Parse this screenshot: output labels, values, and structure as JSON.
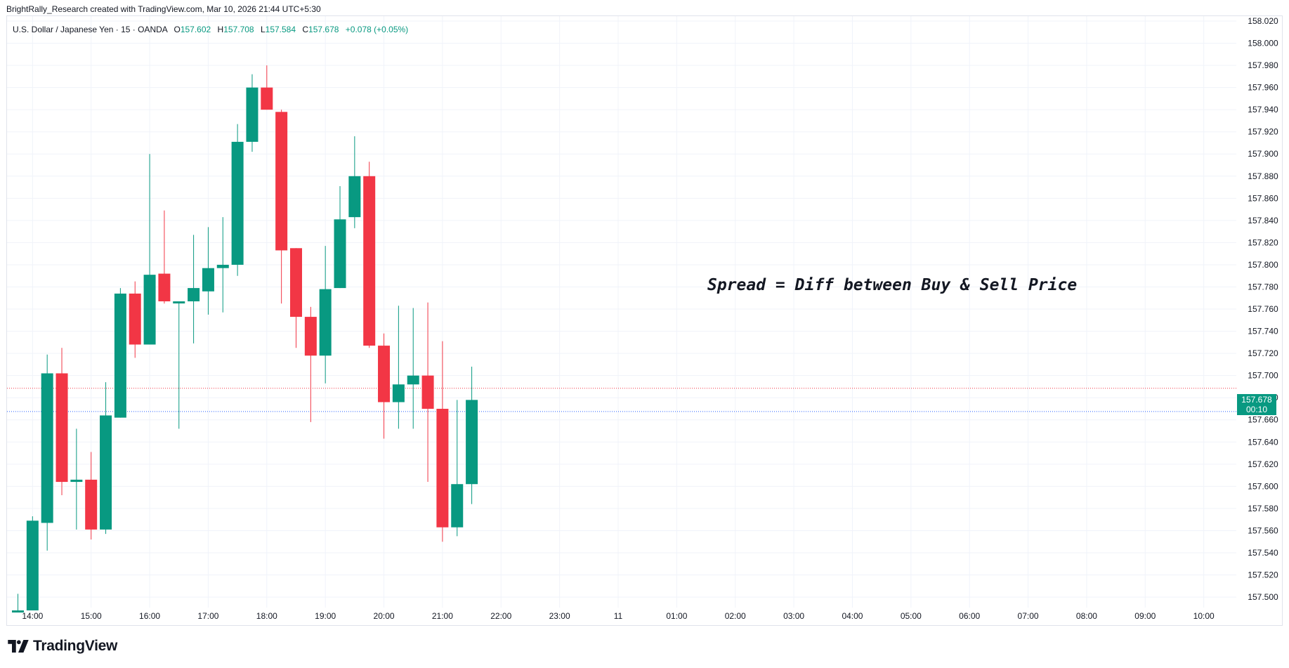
{
  "header": {
    "credit": "BrightRally_Research created with TradingView.com, Mar 10, 2026 21:44 UTC+5:30"
  },
  "legend": {
    "symbol": "U.S. Dollar / Japanese Yen · 15 · OANDA",
    "open_label": "O",
    "open": "157.602",
    "high_label": "H",
    "high": "157.708",
    "low_label": "L",
    "low": "157.584",
    "close_label": "C",
    "close": "157.678",
    "change": "+0.078 (+0.05%)"
  },
  "annotation": {
    "text": "Spread = Diff between Buy & Sell Price"
  },
  "price_badge": {
    "price": "157.678",
    "countdown": "00:10"
  },
  "footer": {
    "brand": "TradingView"
  },
  "colors": {
    "up": "#089981",
    "down": "#f23645",
    "ask_line": "#f23645",
    "bid_line": "#2962ff",
    "text": "#131722"
  },
  "chart_data": {
    "type": "candlestick",
    "interval_minutes": 15,
    "ylim": [
      157.488,
      158.02
    ],
    "xlim": [
      "2026-03-10 13:45",
      "2026-03-11 10:15"
    ],
    "y_ticks": [
      "158.020",
      "158.000",
      "157.980",
      "157.960",
      "157.940",
      "157.920",
      "157.900",
      "157.880",
      "157.860",
      "157.840",
      "157.820",
      "157.800",
      "157.780",
      "157.760",
      "157.740",
      "157.720",
      "157.700",
      "157.680",
      "157.660",
      "157.640",
      "157.620",
      "157.600",
      "157.580",
      "157.560",
      "157.540",
      "157.520",
      "157.500"
    ],
    "x_tick_labels": [
      {
        "t": "2026-03-10 14:00",
        "label": "14:00"
      },
      {
        "t": "2026-03-10 15:00",
        "label": "15:00"
      },
      {
        "t": "2026-03-10 16:00",
        "label": "16:00"
      },
      {
        "t": "2026-03-10 17:00",
        "label": "17:00"
      },
      {
        "t": "2026-03-10 18:00",
        "label": "18:00"
      },
      {
        "t": "2026-03-10 19:00",
        "label": "19:00"
      },
      {
        "t": "2026-03-10 20:00",
        "label": "20:00"
      },
      {
        "t": "2026-03-10 21:00",
        "label": "21:00"
      },
      {
        "t": "2026-03-10 22:00",
        "label": "22:00"
      },
      {
        "t": "2026-03-10 23:00",
        "label": "23:00"
      },
      {
        "t": "2026-03-11 00:00",
        "label": "11"
      },
      {
        "t": "2026-03-11 01:00",
        "label": "01:00"
      },
      {
        "t": "2026-03-11 02:00",
        "label": "02:00"
      },
      {
        "t": "2026-03-11 03:00",
        "label": "03:00"
      },
      {
        "t": "2026-03-11 04:00",
        "label": "04:00"
      },
      {
        "t": "2026-03-11 05:00",
        "label": "05:00"
      },
      {
        "t": "2026-03-11 06:00",
        "label": "06:00"
      },
      {
        "t": "2026-03-11 07:00",
        "label": "07:00"
      },
      {
        "t": "2026-03-11 08:00",
        "label": "08:00"
      },
      {
        "t": "2026-03-11 09:00",
        "label": "09:00"
      },
      {
        "t": "2026-03-11 10:00",
        "label": "10:00"
      }
    ],
    "candles": [
      {
        "t": "2026-03-10 13:45",
        "o": 157.488,
        "h": 157.503,
        "l": 157.488,
        "c": 157.488
      },
      {
        "t": "2026-03-10 14:00",
        "o": 157.488,
        "h": 157.573,
        "l": 157.488,
        "c": 157.569
      },
      {
        "t": "2026-03-10 14:15",
        "o": 157.567,
        "h": 157.719,
        "l": 157.542,
        "c": 157.702
      },
      {
        "t": "2026-03-10 14:30",
        "o": 157.702,
        "h": 157.725,
        "l": 157.592,
        "c": 157.604
      },
      {
        "t": "2026-03-10 14:45",
        "o": 157.604,
        "h": 157.652,
        "l": 157.561,
        "c": 157.606
      },
      {
        "t": "2026-03-10 15:00",
        "o": 157.606,
        "h": 157.631,
        "l": 157.552,
        "c": 157.561
      },
      {
        "t": "2026-03-10 15:15",
        "o": 157.561,
        "h": 157.694,
        "l": 157.557,
        "c": 157.664
      },
      {
        "t": "2026-03-10 15:30",
        "o": 157.662,
        "h": 157.779,
        "l": 157.662,
        "c": 157.774
      },
      {
        "t": "2026-03-10 15:45",
        "o": 157.774,
        "h": 157.785,
        "l": 157.716,
        "c": 157.728
      },
      {
        "t": "2026-03-10 16:00",
        "o": 157.728,
        "h": 157.9,
        "l": 157.728,
        "c": 157.791
      },
      {
        "t": "2026-03-10 16:15",
        "o": 157.792,
        "h": 157.849,
        "l": 157.765,
        "c": 157.767
      },
      {
        "t": "2026-03-10 16:30",
        "o": 157.767,
        "h": 157.767,
        "l": 157.652,
        "c": 157.767
      },
      {
        "t": "2026-03-10 16:45",
        "o": 157.767,
        "h": 157.827,
        "l": 157.729,
        "c": 157.779
      },
      {
        "t": "2026-03-10 17:00",
        "o": 157.776,
        "h": 157.834,
        "l": 157.755,
        "c": 157.797
      },
      {
        "t": "2026-03-10 17:15",
        "o": 157.797,
        "h": 157.843,
        "l": 157.757,
        "c": 157.8
      },
      {
        "t": "2026-03-10 17:30",
        "o": 157.8,
        "h": 157.927,
        "l": 157.79,
        "c": 157.911
      },
      {
        "t": "2026-03-10 17:45",
        "o": 157.911,
        "h": 157.972,
        "l": 157.902,
        "c": 157.96
      },
      {
        "t": "2026-03-10 18:00",
        "o": 157.96,
        "h": 157.98,
        "l": 157.94,
        "c": 157.94
      },
      {
        "t": "2026-03-10 18:15",
        "o": 157.938,
        "h": 157.94,
        "l": 157.765,
        "c": 157.813
      },
      {
        "t": "2026-03-10 18:30",
        "o": 157.815,
        "h": 157.815,
        "l": 157.725,
        "c": 157.753
      },
      {
        "t": "2026-03-10 18:45",
        "o": 157.753,
        "h": 157.762,
        "l": 157.658,
        "c": 157.718
      },
      {
        "t": "2026-03-10 19:00",
        "o": 157.718,
        "h": 157.817,
        "l": 157.693,
        "c": 157.778
      },
      {
        "t": "2026-03-10 19:15",
        "o": 157.779,
        "h": 157.871,
        "l": 157.779,
        "c": 157.841
      },
      {
        "t": "2026-03-10 19:30",
        "o": 157.843,
        "h": 157.916,
        "l": 157.833,
        "c": 157.88
      },
      {
        "t": "2026-03-10 19:45",
        "o": 157.88,
        "h": 157.893,
        "l": 157.725,
        "c": 157.727
      },
      {
        "t": "2026-03-10 20:00",
        "o": 157.727,
        "h": 157.738,
        "l": 157.643,
        "c": 157.676
      },
      {
        "t": "2026-03-10 20:15",
        "o": 157.676,
        "h": 157.763,
        "l": 157.652,
        "c": 157.692
      },
      {
        "t": "2026-03-10 20:30",
        "o": 157.692,
        "h": 157.761,
        "l": 157.652,
        "c": 157.7
      },
      {
        "t": "2026-03-10 20:45",
        "o": 157.7,
        "h": 157.766,
        "l": 157.604,
        "c": 157.67
      },
      {
        "t": "2026-03-10 21:00",
        "o": 157.67,
        "h": 157.731,
        "l": 157.55,
        "c": 157.563
      },
      {
        "t": "2026-03-10 21:15",
        "o": 157.563,
        "h": 157.678,
        "l": 157.555,
        "c": 157.602
      },
      {
        "t": "2026-03-10 21:30",
        "o": 157.602,
        "h": 157.708,
        "l": 157.584,
        "c": 157.678
      }
    ],
    "ask_line": 157.6885,
    "bid_line": 157.6675,
    "last_price": 157.678
  }
}
